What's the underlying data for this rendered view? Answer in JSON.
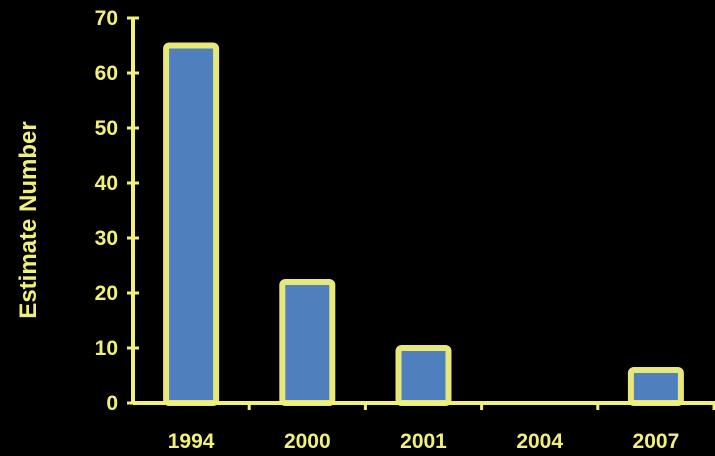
{
  "chart_data": {
    "type": "bar",
    "title": "",
    "xlabel": "",
    "ylabel": "Estimate Number",
    "categories": [
      "1994",
      "2000",
      "2001",
      "2004",
      "2007"
    ],
    "values": [
      65,
      22,
      10,
      0,
      6
    ],
    "ylim": [
      0,
      70
    ],
    "yticks": [
      0,
      10,
      20,
      30,
      40,
      50,
      60,
      70
    ],
    "grid": false,
    "legend": "none"
  },
  "colors": {
    "background": "#000000",
    "axis": "#f2f07a",
    "bar_fill": "#4f80bd",
    "bar_border": "#e8e87a",
    "text": "#f2f07a"
  }
}
